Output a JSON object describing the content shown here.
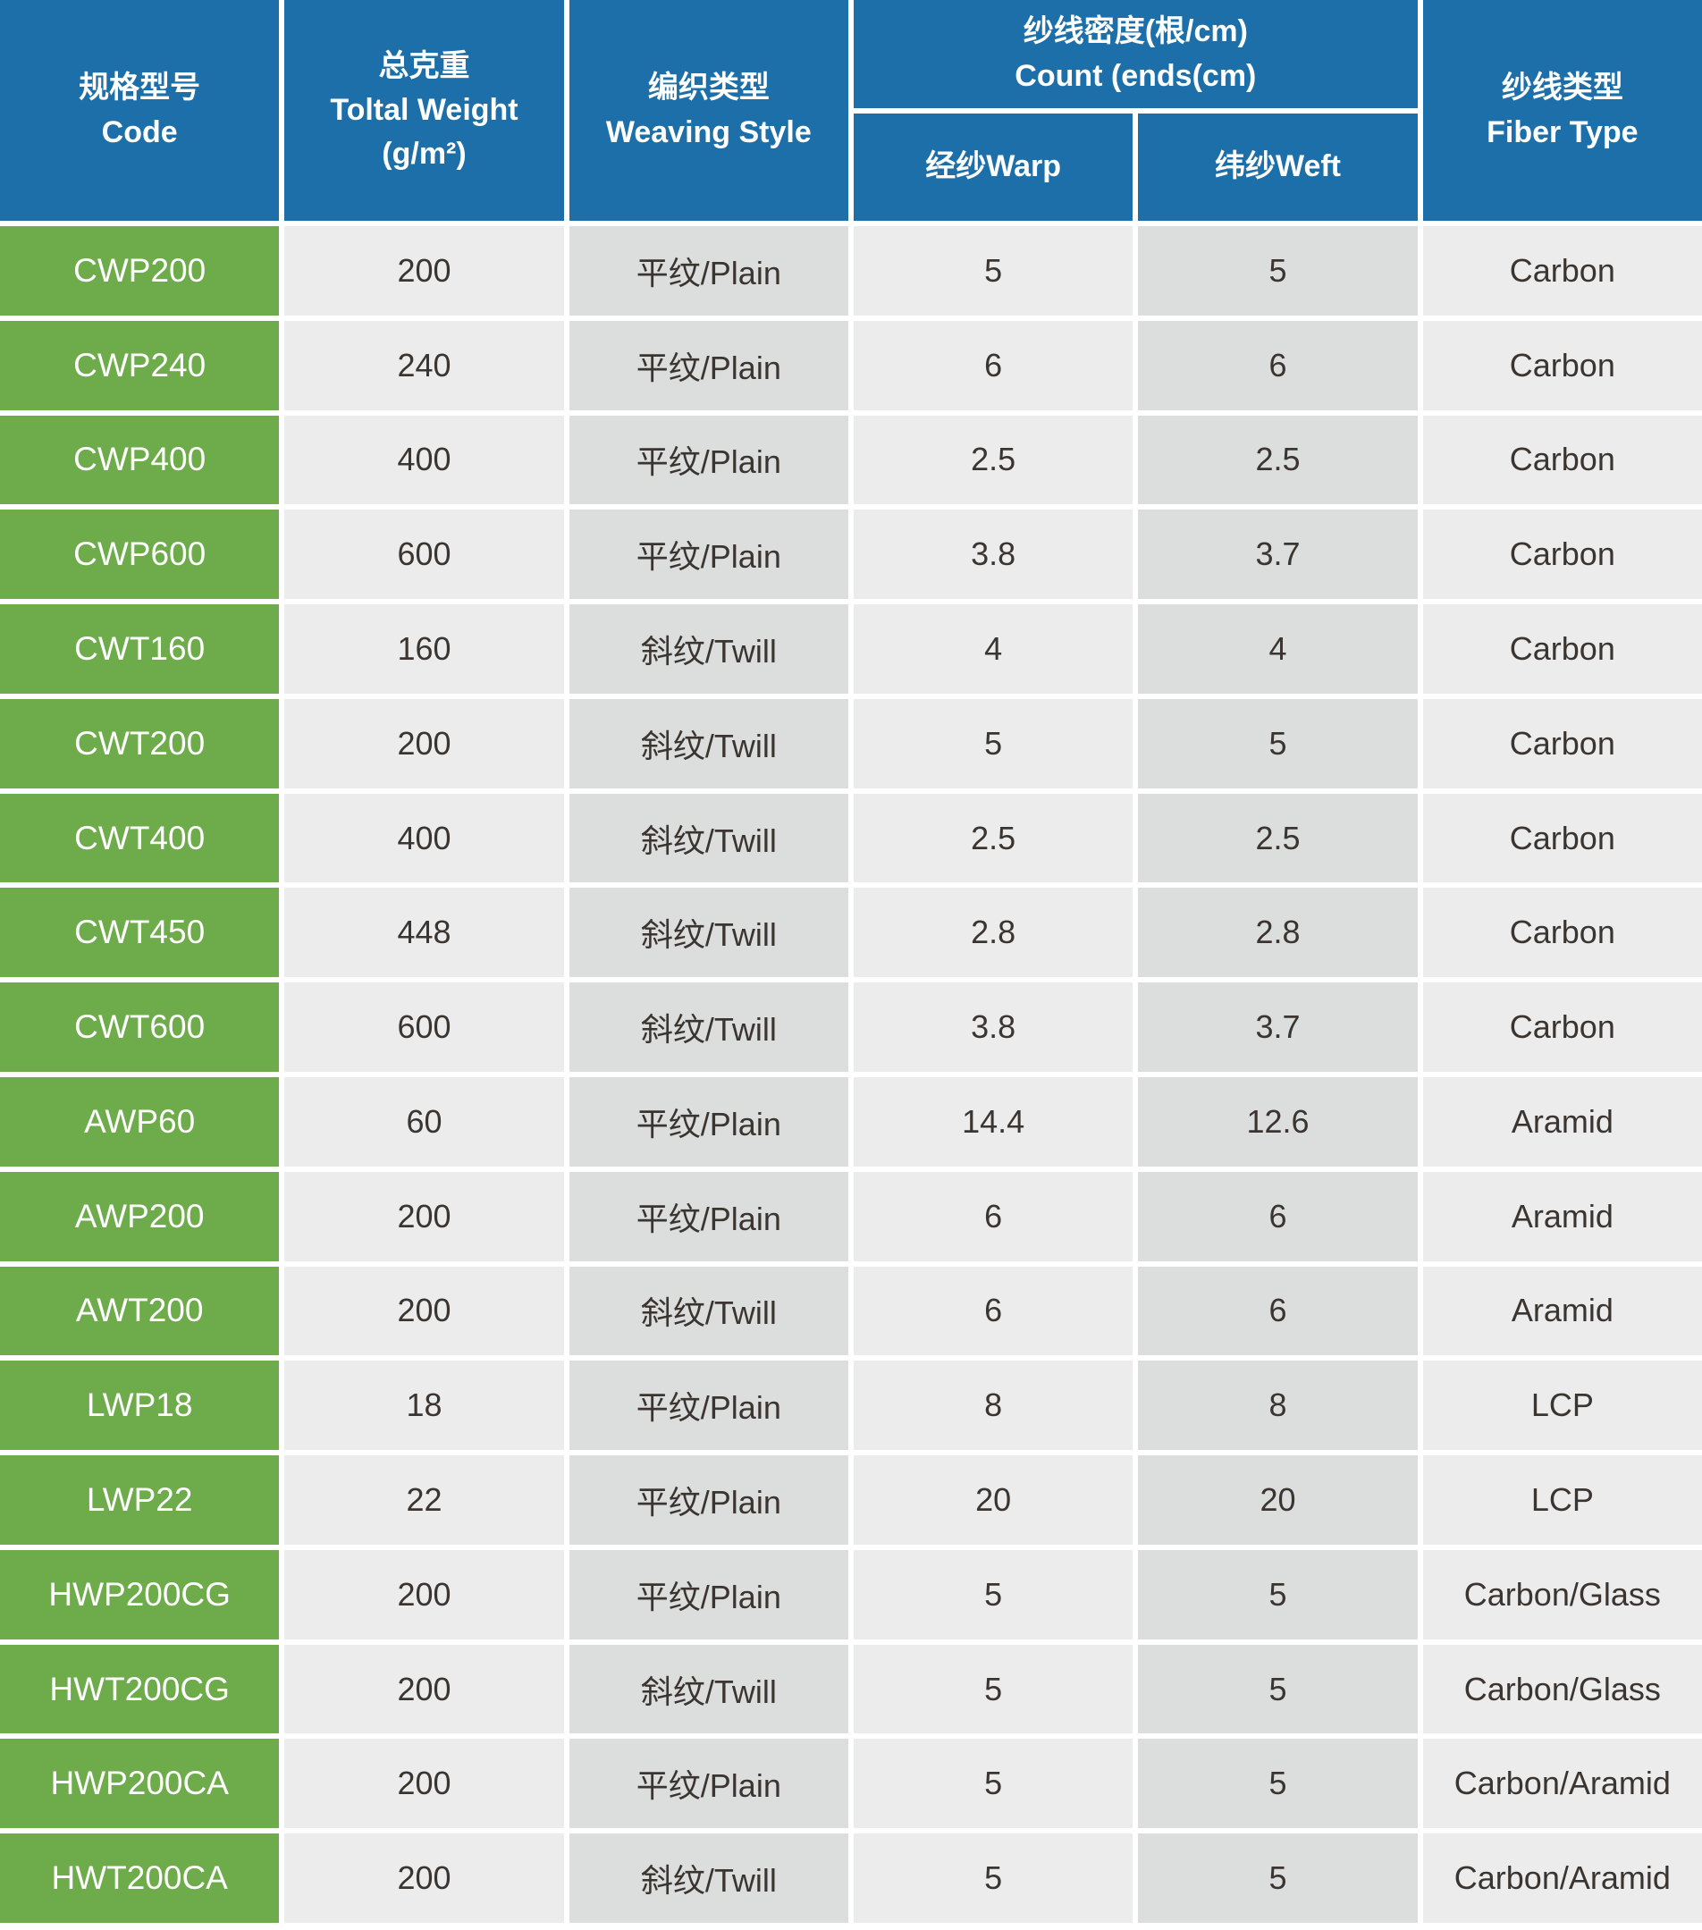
{
  "colors": {
    "header_blue": "#1c6fa8",
    "row_green": "#6eac4b",
    "cell_light": "#ececec",
    "cell_dark": "#dcdddd",
    "text_dark": "#3b3531",
    "header_text": "#ffffff",
    "grid_gap": "#ffffff"
  },
  "table": {
    "header": {
      "code_zh": "规格型号",
      "code_en": "Code",
      "weight_zh": "总克重",
      "weight_en": "Toltal Weight",
      "weight_unit": "(g/m²)",
      "weaving_zh": "编织类型",
      "weaving_en": "Weaving Style",
      "count_zh": "纱线密度(根/cm)",
      "count_en": "Count (ends(cm)",
      "warp": "经纱Warp",
      "weft": "纬纱Weft",
      "fiber_zh": "纱线类型",
      "fiber_en": "Fiber Type"
    },
    "rows": [
      {
        "code": "CWP200",
        "weight": "200",
        "weaving": "平纹/Plain",
        "warp": "5",
        "weft": "5",
        "fiber": "Carbon"
      },
      {
        "code": "CWP240",
        "weight": "240",
        "weaving": "平纹/Plain",
        "warp": "6",
        "weft": "6",
        "fiber": "Carbon"
      },
      {
        "code": "CWP400",
        "weight": "400",
        "weaving": "平纹/Plain",
        "warp": "2.5",
        "weft": "2.5",
        "fiber": "Carbon"
      },
      {
        "code": "CWP600",
        "weight": "600",
        "weaving": "平纹/Plain",
        "warp": "3.8",
        "weft": "3.7",
        "fiber": "Carbon"
      },
      {
        "code": "CWT160",
        "weight": "160",
        "weaving": "斜纹/Twill",
        "warp": "4",
        "weft": "4",
        "fiber": "Carbon"
      },
      {
        "code": "CWT200",
        "weight": "200",
        "weaving": "斜纹/Twill",
        "warp": "5",
        "weft": "5",
        "fiber": "Carbon"
      },
      {
        "code": "CWT400",
        "weight": "400",
        "weaving": "斜纹/Twill",
        "warp": "2.5",
        "weft": "2.5",
        "fiber": "Carbon"
      },
      {
        "code": "CWT450",
        "weight": "448",
        "weaving": "斜纹/Twill",
        "warp": "2.8",
        "weft": "2.8",
        "fiber": "Carbon"
      },
      {
        "code": "CWT600",
        "weight": "600",
        "weaving": "斜纹/Twill",
        "warp": "3.8",
        "weft": "3.7",
        "fiber": "Carbon"
      },
      {
        "code": "AWP60",
        "weight": "60",
        "weaving": "平纹/Plain",
        "warp": "14.4",
        "weft": "12.6",
        "fiber": "Aramid"
      },
      {
        "code": "AWP200",
        "weight": "200",
        "weaving": "平纹/Plain",
        "warp": "6",
        "weft": "6",
        "fiber": "Aramid"
      },
      {
        "code": "AWT200",
        "weight": "200",
        "weaving": "斜纹/Twill",
        "warp": "6",
        "weft": "6",
        "fiber": "Aramid"
      },
      {
        "code": "LWP18",
        "weight": "18",
        "weaving": "平纹/Plain",
        "warp": "8",
        "weft": "8",
        "fiber": "LCP"
      },
      {
        "code": "LWP22",
        "weight": "22",
        "weaving": "平纹/Plain",
        "warp": "20",
        "weft": "20",
        "fiber": "LCP"
      },
      {
        "code": "HWP200CG",
        "weight": "200",
        "weaving": "平纹/Plain",
        "warp": "5",
        "weft": "5",
        "fiber": "Carbon/Glass"
      },
      {
        "code": "HWT200CG",
        "weight": "200",
        "weaving": "斜纹/Twill",
        "warp": "5",
        "weft": "5",
        "fiber": "Carbon/Glass"
      },
      {
        "code": "HWP200CA",
        "weight": "200",
        "weaving": "平纹/Plain",
        "warp": "5",
        "weft": "5",
        "fiber": "Carbon/Aramid"
      },
      {
        "code": "HWT200CA",
        "weight": "200",
        "weaving": "斜纹/Twill",
        "warp": "5",
        "weft": "5",
        "fiber": "Carbon/Aramid"
      }
    ]
  }
}
